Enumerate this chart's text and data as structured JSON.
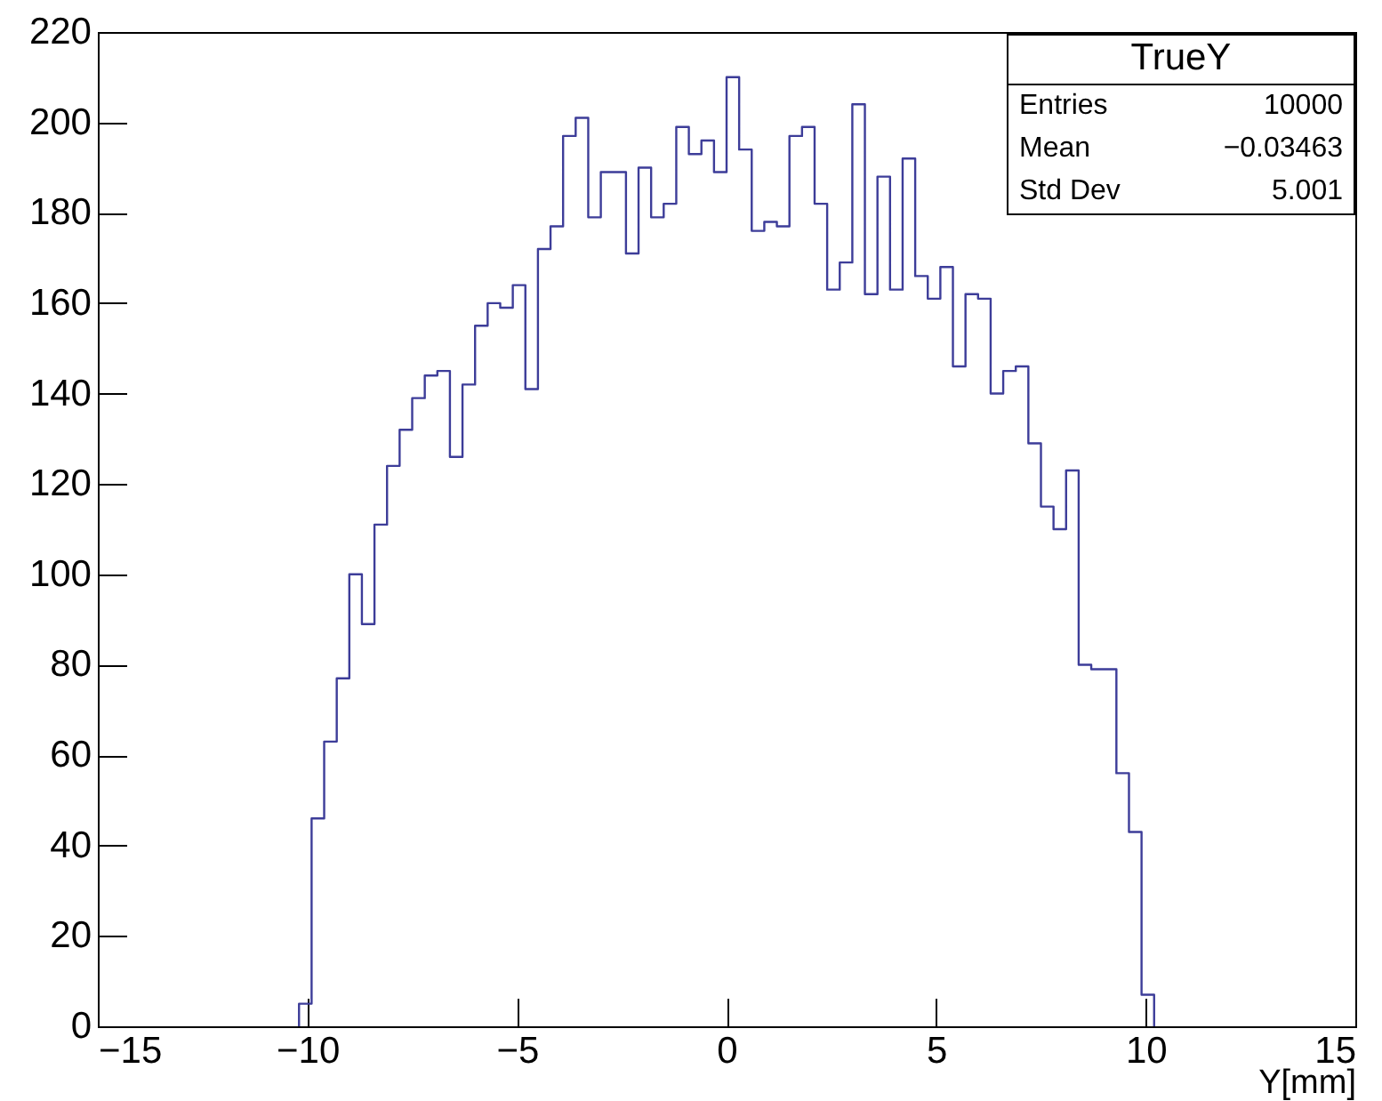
{
  "chart_data": {
    "type": "histogram",
    "color": "#3d3d99",
    "bins": [
      -10.2,
      -9.9,
      -9.6,
      -9.3,
      -9.0,
      -8.7,
      -8.4,
      -8.1,
      -7.8,
      -7.5,
      -7.2,
      -6.9,
      -6.6,
      -6.3,
      -6.0,
      -5.7,
      -5.4,
      -5.1,
      -4.8,
      -4.5,
      -4.2,
      -3.9,
      -3.6,
      -3.3,
      -3.0,
      -2.7,
      -2.4,
      -2.1,
      -1.8,
      -1.5,
      -1.2,
      -0.9,
      -0.6,
      -0.3,
      0.0,
      0.3,
      0.6,
      0.9,
      1.2,
      1.5,
      1.8,
      2.1,
      2.4,
      2.7,
      3.0,
      3.3,
      3.6,
      3.9,
      4.2,
      4.5,
      4.8,
      5.1,
      5.4,
      5.7,
      6.0,
      6.3,
      6.6,
      6.9,
      7.2,
      7.5,
      7.8,
      8.1,
      8.4,
      8.7,
      9.0,
      9.3,
      9.6,
      9.9,
      10.2
    ],
    "values": [
      5,
      46,
      63,
      77,
      100,
      89,
      111,
      124,
      132,
      139,
      144,
      145,
      126,
      142,
      155,
      160,
      159,
      164,
      141,
      172,
      177,
      197,
      201,
      179,
      189,
      189,
      171,
      190,
      179,
      182,
      199,
      193,
      196,
      189,
      210,
      194,
      176,
      178,
      177,
      197,
      199,
      182,
      163,
      169,
      204,
      162,
      188,
      163,
      192,
      166,
      161,
      168,
      146,
      162,
      161,
      140,
      145,
      146,
      129,
      115,
      110,
      123,
      80,
      79,
      79,
      56,
      43,
      7
    ],
    "xlim": [
      -15,
      15
    ],
    "xticks": [
      {
        "value": -15,
        "label": "−15"
      },
      {
        "value": -10,
        "label": "−10"
      },
      {
        "value": -5,
        "label": "−5"
      },
      0,
      5,
      10,
      15
    ],
    "ylim": [
      0,
      220
    ],
    "yticks": [
      0,
      20,
      40,
      60,
      80,
      100,
      120,
      140,
      160,
      180,
      200,
      220
    ],
    "xlabel": "Y[mm]",
    "annotations": [
      "TrueY",
      "Entries",
      "10000",
      "Mean",
      "−0.03463",
      "Std Dev",
      "5.001"
    ]
  }
}
